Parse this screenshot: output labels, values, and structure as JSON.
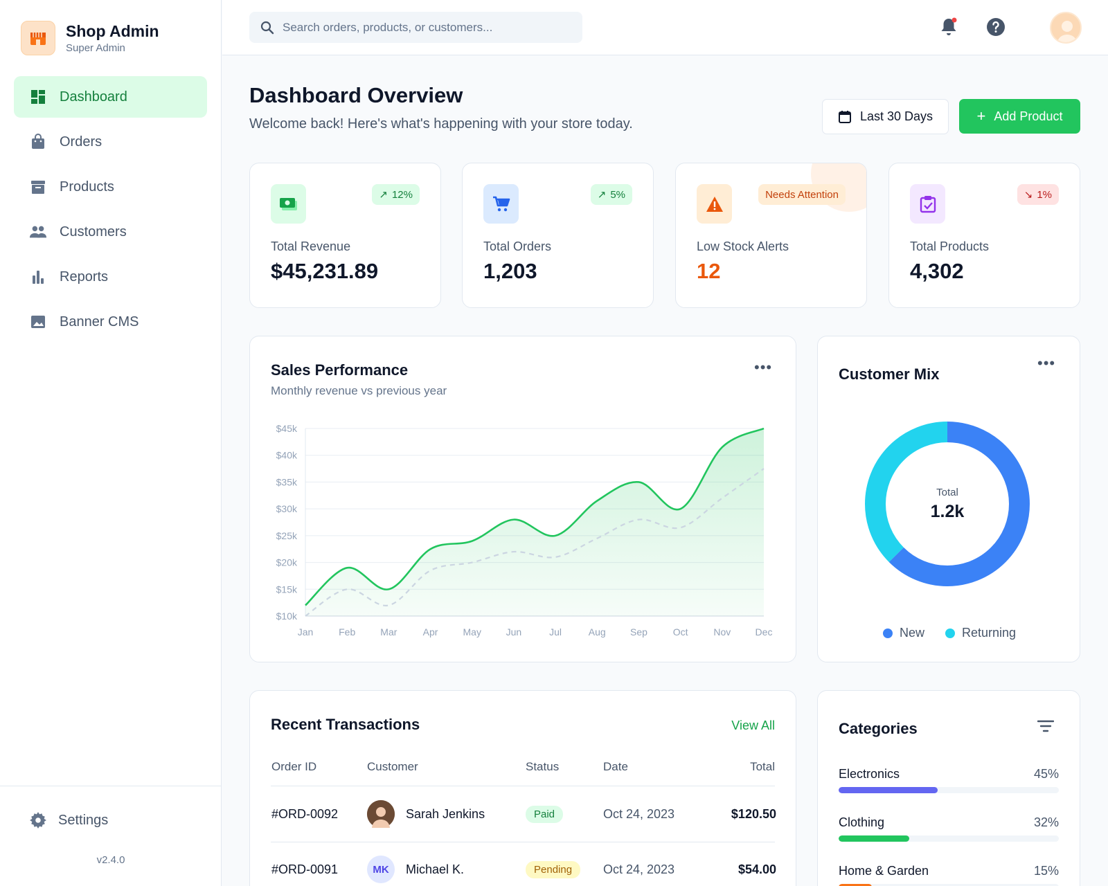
{
  "brand": {
    "title": "Shop Admin",
    "subtitle": "Super Admin"
  },
  "sidebar": {
    "items": [
      {
        "label": "Dashboard",
        "icon": "dashboard-icon",
        "active": true
      },
      {
        "label": "Orders",
        "icon": "shopping-bag-icon"
      },
      {
        "label": "Products",
        "icon": "archive-box-icon"
      },
      {
        "label": "Customers",
        "icon": "people-icon"
      },
      {
        "label": "Reports",
        "icon": "bar-chart-icon"
      },
      {
        "label": "Banner CMS",
        "icon": "image-icon"
      }
    ],
    "settings_label": "Settings",
    "version": "v2.4.0"
  },
  "header": {
    "search_placeholder": "Search orders, products, or customers...",
    "icons": [
      "bell-icon",
      "help-icon",
      "avatar"
    ]
  },
  "page": {
    "title": "Dashboard Overview",
    "subtitle": "Welcome back! Here's what's happening with your store today.",
    "range_label": "Last 30 Days",
    "add_label": "Add Product"
  },
  "stats": [
    {
      "label": "Total Revenue",
      "value": "$45,231.89",
      "badge": "12%",
      "trend": "up",
      "icon": "money-icon",
      "accent": "#16a34a"
    },
    {
      "label": "Total Orders",
      "value": "1,203",
      "badge": "5%",
      "trend": "up",
      "icon": "cart-icon",
      "accent": "#2563eb"
    },
    {
      "label": "Low Stock Alerts",
      "value": "12",
      "badge": "Needs Attention",
      "trend": "alert",
      "icon": "warning-icon",
      "accent": "#ea580c"
    },
    {
      "label": "Total Products",
      "value": "4,302",
      "badge": "1%",
      "trend": "down",
      "icon": "clipboard-check-icon",
      "accent": "#9333ea"
    }
  ],
  "sales": {
    "title": "Sales Performance",
    "subtitle": "Monthly revenue vs previous year",
    "chart_data": {
      "type": "line",
      "x": [
        "Jan",
        "Feb",
        "Mar",
        "Apr",
        "May",
        "Jun",
        "Jul",
        "Aug",
        "Sep",
        "Oct",
        "Nov",
        "Dec"
      ],
      "y_ticks": [
        "$10k",
        "$15k",
        "$20k",
        "$25k",
        "$30k",
        "$35k",
        "$40k",
        "$45k"
      ],
      "ylim": [
        10000,
        45000
      ],
      "series": [
        {
          "values": [
            12000,
            19000,
            15000,
            22500,
            24000,
            28000,
            25000,
            31500,
            35000,
            30000,
            41500,
            45000
          ],
          "color": "#22c55e",
          "style": "solid",
          "fill": true
        },
        {
          "values": [
            10000,
            15000,
            12000,
            18500,
            20000,
            22000,
            21000,
            24500,
            28000,
            26500,
            32000,
            37500
          ],
          "color": "#cbd5e1",
          "style": "dashed",
          "fill": false
        }
      ],
      "grid": true
    }
  },
  "mix": {
    "title": "Customer Mix",
    "center_label": "Total",
    "center_value": "1.2k",
    "chart_data": {
      "type": "pie",
      "donut": true,
      "slices": [
        {
          "label": "New",
          "value": 62.5,
          "color": "#3b82f6"
        },
        {
          "label": "Returning",
          "value": 37.5,
          "color": "#22d3ee"
        }
      ]
    }
  },
  "transactions": {
    "title": "Recent Transactions",
    "view_all": "View All",
    "columns": [
      "Order ID",
      "Customer",
      "Status",
      "Date",
      "Total"
    ],
    "rows": [
      {
        "id": "#ORD-0092",
        "customer": "Sarah Jenkins",
        "initials": "",
        "status": "Paid",
        "date": "Oct 24, 2023",
        "total": "$120.50"
      },
      {
        "id": "#ORD-0091",
        "customer": "Michael K.",
        "initials": "MK",
        "status": "Pending",
        "date": "Oct 24, 2023",
        "total": "$54.00"
      }
    ]
  },
  "categories": {
    "title": "Categories",
    "items": [
      {
        "label": "Electronics",
        "pct": "45%",
        "value": 45,
        "color": "#6366f1"
      },
      {
        "label": "Clothing",
        "pct": "32%",
        "value": 32,
        "color": "#22c55e"
      },
      {
        "label": "Home & Garden",
        "pct": "15%",
        "value": 15,
        "color": "#f97316"
      }
    ]
  }
}
